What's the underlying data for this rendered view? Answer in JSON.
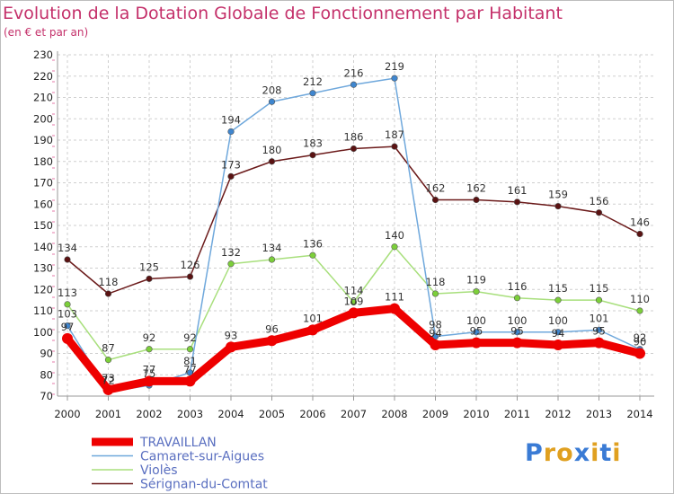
{
  "title": "Evolution de la Dotation Globale de Fonctionnement par Habitant",
  "subtitle": "(en € et par an)",
  "logo": {
    "text": "Proxiti",
    "colors": [
      "#3a7bd5",
      "#e0a020",
      "#e0a020",
      "#3a7bd5",
      "#e0a020",
      "#3a7bd5",
      "#e0a020"
    ]
  },
  "chart_data": {
    "type": "line",
    "x": [
      "2000",
      "2001",
      "2002",
      "2003",
      "2004",
      "2005",
      "2006",
      "2007",
      "2008",
      "2009",
      "2010",
      "2011",
      "2012",
      "2013",
      "2014"
    ],
    "ylim": [
      70,
      230
    ],
    "yticks": [
      70,
      80,
      90,
      100,
      110,
      120,
      130,
      140,
      150,
      160,
      170,
      180,
      190,
      200,
      210,
      220,
      230
    ],
    "grid": true,
    "legend_position": "bottom-left",
    "series": [
      {
        "name": "Sérignan-du-Comtat",
        "color": "#6b1a1a",
        "marker": "#5a1212",
        "values": [
          134,
          118,
          125,
          126,
          173,
          180,
          183,
          186,
          187,
          162,
          162,
          161,
          159,
          156,
          146
        ]
      },
      {
        "name": "Violès",
        "color": "#a8df7c",
        "marker": "#7ccf3a",
        "values": [
          113,
          87,
          92,
          92,
          132,
          134,
          136,
          114,
          140,
          118,
          119,
          116,
          115,
          115,
          110
        ]
      },
      {
        "name": "Camaret-sur-Aigues",
        "color": "#6fa8dc",
        "marker": "#3f86cf",
        "values": [
          103,
          72,
          75,
          81,
          194,
          208,
          212,
          216,
          219,
          98,
          100,
          100,
          100,
          101,
          92
        ]
      },
      {
        "name": "TRAVAILLAN",
        "color": "#ee0000",
        "marker": "#ee0000",
        "values": [
          97,
          73,
          77,
          77,
          93,
          96,
          101,
          109,
          111,
          94,
          95,
          95,
          94,
          95,
          90
        ]
      }
    ],
    "legend_order": [
      "TRAVAILLAN",
      "Camaret-sur-Aigues",
      "Violès",
      "Sérignan-du-Comtat"
    ]
  }
}
